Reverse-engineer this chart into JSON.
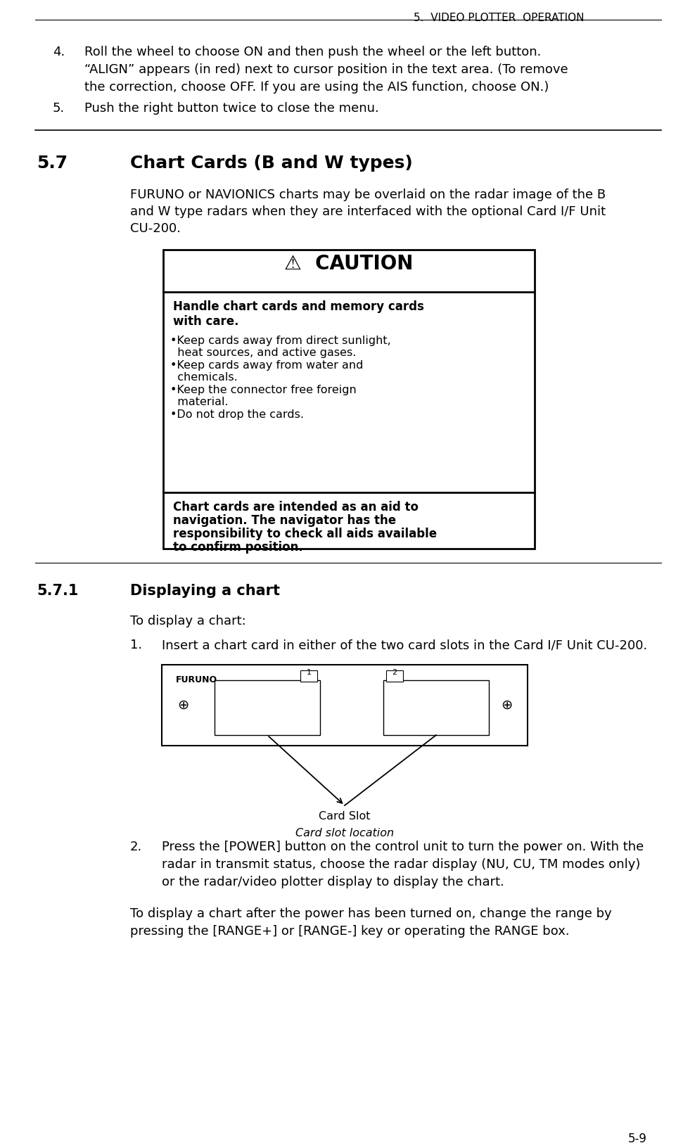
{
  "page_header": "5.  VIDEO PLOTTER  OPERATION",
  "page_number": "5-9",
  "bg_color": "#ffffff",
  "header_fontsize": 11,
  "body_fontsize": 13,
  "body_fontsize_sm": 11.5,
  "section_fontsize": 18,
  "subsection_fontsize": 15,
  "caution_title_fontsize": 20,
  "caution_body_fontsize": 12,
  "item4_line1": "Roll the wheel to choose ON and then push the wheel or the left button.",
  "item4_line2": "“ALIGN” appears (in red) next to cursor position in the text area. (To remove",
  "item4_line3": "the correction, choose OFF. If you are using the AIS function, choose ON.)",
  "item5_text": "Push the right button twice to close the menu.",
  "sec57_num": "5.7",
  "sec57_title": "Chart Cards (B and W types)",
  "sec57_body1": "FURUNO or NAVIONICS charts may be overlaid on the radar image of the B",
  "sec57_body2": "and W type radars when they are interfaced with the optional Card I/F Unit",
  "sec57_body3": "CU-200.",
  "caution_header": "⚠  CAUTION",
  "caution_bold1": "Handle chart cards and memory cards",
  "caution_bold2": "with care.",
  "caution_b1l1": "•Keep cards away from direct sunlight,",
  "caution_b1l2": "  heat sources, and active gases.",
  "caution_b2l1": "•Keep cards away from water and",
  "caution_b2l2": "  chemicals.",
  "caution_b3l1": "•Keep the connector free foreign",
  "caution_b3l2": "  material.",
  "caution_b4": "•Do not drop the cards.",
  "caution_f1": "Chart cards are intended as an aid to",
  "caution_f2": "navigation. The navigator has the",
  "caution_f3": "responsibility to check all aids available",
  "caution_f4": "to confirm position.",
  "sec571_num": "5.7.1",
  "sec571_title": "Displaying a chart",
  "to_display": "To display a chart:",
  "item1_num": "1.",
  "item1_text": "Insert a chart card in either of the two card slots in the Card I/F Unit CU-200.",
  "furuno_label": "FURUNO",
  "slot1_num": "1",
  "slot2_num": "2",
  "card_slot_label": "Card Slot",
  "card_slot_caption": "Card slot location",
  "item2_num": "2.",
  "item2_l1": "Press the [POWER] button on the control unit to turn the power on. With the",
  "item2_l2": "radar in transmit status, choose the radar display (NU, CU, TM modes only)",
  "item2_l3": "or the radar/video plotter display to display the chart.",
  "bottom1": "To display a chart after the power has been turned on, change the range by",
  "bottom2": "pressing the [RANGE+] or [RANGE-] key or operating the RANGE box."
}
